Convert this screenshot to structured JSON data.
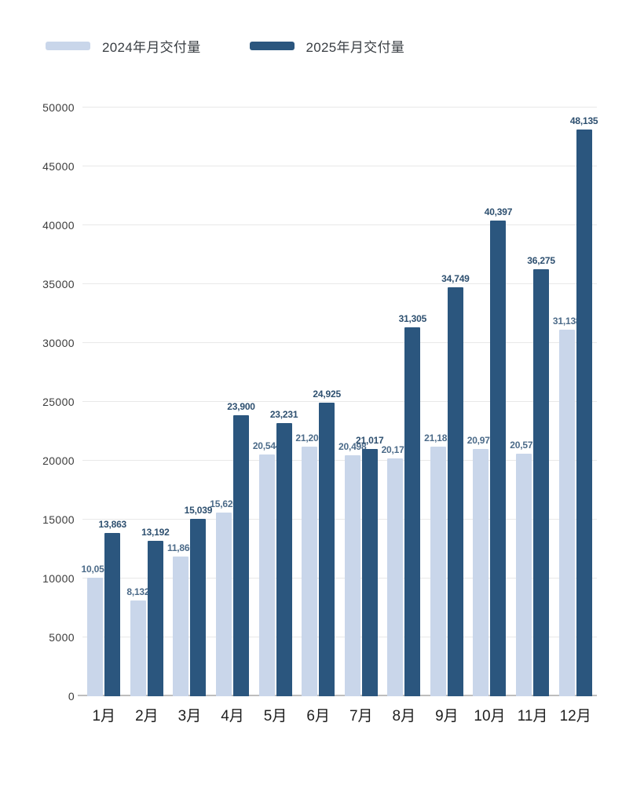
{
  "chart_data": {
    "type": "bar",
    "title": "",
    "xlabel": "",
    "ylabel": "",
    "categories": [
      "1月",
      "2月",
      "3月",
      "4月",
      "5月",
      "6月",
      "7月",
      "8月",
      "9月",
      "10月",
      "11月",
      "12月"
    ],
    "series": [
      {
        "name": "2024年月交付量",
        "color": "#c9d6ea",
        "label_color": "#4c6b89",
        "values": [
          10055,
          8132,
          11866,
          15620,
          20544,
          21209,
          20498,
          20176,
          21181,
          20976,
          20575,
          31138
        ]
      },
      {
        "name": "2025年月交付量",
        "color": "#2b567e",
        "label_color": "#2d4f6f",
        "values": [
          13863,
          13192,
          15039,
          23900,
          23231,
          24925,
          21017,
          31305,
          34749,
          40397,
          36275,
          48135
        ]
      }
    ],
    "ylim": [
      0,
      50000
    ],
    "ytick_step": 5000,
    "ytick_labels": [
      "0",
      "5000",
      "10000",
      "15000",
      "20000",
      "25000",
      "30000",
      "35000",
      "40000",
      "45000",
      "50000"
    ],
    "grid": "horizontal-only",
    "legend_position": "top-left",
    "value_labels": "on",
    "value_label_format": "thousands-comma"
  }
}
